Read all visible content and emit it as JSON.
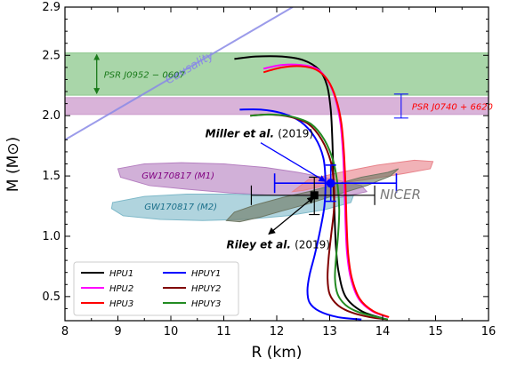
{
  "chart_data": {
    "type": "line",
    "title": "",
    "xlabel": "R (km)",
    "ylabel": "M (M⊙)",
    "xlim": [
      8,
      16
    ],
    "ylim": [
      0.3,
      2.9
    ],
    "x_ticks": [
      8,
      9,
      10,
      11,
      12,
      13,
      14,
      15,
      16
    ],
    "y_ticks": [
      0.5,
      1.0,
      1.5,
      2.0,
      2.5,
      2.9
    ],
    "x_tick_labels": [
      "8",
      "9",
      "10",
      "11",
      "12",
      "13",
      "14",
      "15",
      "16"
    ],
    "y_tick_labels": [
      "0.5",
      "1.0",
      "1.5",
      "2.0",
      "2.5",
      "2.9"
    ],
    "legend_position": "bottom-left",
    "series": [
      {
        "name": "HPU1",
        "color": "#000000",
        "x": [
          11.2,
          11.6,
          12.1,
          12.5,
          12.8,
          12.95,
          13.02,
          13.05,
          13.07,
          13.09,
          13.12,
          13.17,
          13.3,
          13.6,
          14.0
        ],
        "y": [
          2.47,
          2.49,
          2.49,
          2.46,
          2.38,
          2.25,
          2.05,
          1.8,
          1.5,
          1.2,
          0.9,
          0.7,
          0.5,
          0.38,
          0.32
        ]
      },
      {
        "name": "HPU2",
        "color": "#ff00ff",
        "x": [
          11.75,
          12.1,
          12.45,
          12.75,
          12.95,
          13.1,
          13.2,
          13.25,
          13.28,
          13.3,
          13.33,
          13.4,
          13.55,
          13.8,
          14.1
        ],
        "y": [
          2.39,
          2.42,
          2.42,
          2.39,
          2.3,
          2.15,
          1.95,
          1.7,
          1.4,
          1.1,
          0.85,
          0.65,
          0.48,
          0.38,
          0.33
        ]
      },
      {
        "name": "HPU3",
        "color": "#ff0000",
        "x": [
          11.75,
          12.1,
          12.45,
          12.75,
          12.97,
          13.12,
          13.22,
          13.27,
          13.3,
          13.32,
          13.35,
          13.42,
          13.57,
          13.82,
          14.12
        ],
        "y": [
          2.36,
          2.4,
          2.41,
          2.38,
          2.29,
          2.14,
          1.94,
          1.69,
          1.4,
          1.1,
          0.85,
          0.65,
          0.48,
          0.38,
          0.33
        ]
      },
      {
        "name": "HPUY1",
        "color": "#0000ff",
        "x": [
          11.3,
          11.7,
          12.1,
          12.45,
          12.72,
          12.88,
          12.92,
          12.9,
          12.82,
          12.72,
          12.62,
          12.58,
          12.62,
          12.8,
          13.15,
          13.6
        ],
        "y": [
          2.05,
          2.05,
          2.02,
          1.95,
          1.82,
          1.65,
          1.45,
          1.25,
          1.05,
          0.85,
          0.68,
          0.55,
          0.45,
          0.38,
          0.33,
          0.31
        ]
      },
      {
        "name": "HPUY2",
        "color": "#800000",
        "x": [
          11.5,
          11.85,
          12.25,
          12.6,
          12.85,
          13.02,
          13.08,
          13.08,
          13.03,
          12.98,
          12.96,
          13.0,
          13.15,
          13.4,
          13.75,
          14.1
        ],
        "y": [
          2.0,
          2.01,
          1.99,
          1.93,
          1.8,
          1.62,
          1.42,
          1.22,
          1.02,
          0.82,
          0.65,
          0.52,
          0.43,
          0.37,
          0.33,
          0.31
        ]
      },
      {
        "name": "HPUY3",
        "color": "#228b22",
        "x": [
          11.5,
          11.9,
          12.3,
          12.65,
          12.9,
          13.07,
          13.15,
          13.18,
          13.16,
          13.12,
          13.1,
          13.15,
          13.3,
          13.55,
          13.9,
          14.1
        ],
        "y": [
          2.0,
          2.01,
          1.99,
          1.93,
          1.8,
          1.62,
          1.42,
          1.22,
          1.02,
          0.82,
          0.65,
          0.52,
          0.43,
          0.37,
          0.33,
          0.31
        ]
      }
    ],
    "causality": {
      "label": "Causality",
      "x": [
        8.0,
        12.3
      ],
      "y": [
        1.8,
        2.9
      ],
      "color": "#8a8ae6"
    },
    "bands": [
      {
        "label": "PSR J0952 − 0607",
        "ymin": 2.17,
        "ymax": 2.52,
        "color": "#8cc88c",
        "label_color": "#1a7a1a",
        "arrow_x": 8.6
      },
      {
        "label": "PSR J0740 + 6620",
        "ymin": 2.01,
        "ymax": 2.15,
        "color": "#cc9acc",
        "label_color": "#ff0000",
        "arrow_x": 14.35
      }
    ],
    "regions": [
      {
        "label": "GW170817 (M1)",
        "color": "#b57fc0",
        "label_color": "#800080",
        "x": [
          9.0,
          9.5,
          10.2,
          11.0,
          11.8,
          12.4,
          13.1,
          13.6,
          13.7,
          13.3,
          12.6,
          11.9,
          11.1,
          10.3,
          9.6,
          9.05
        ],
        "y": [
          1.56,
          1.6,
          1.61,
          1.6,
          1.57,
          1.53,
          1.47,
          1.42,
          1.37,
          1.33,
          1.33,
          1.34,
          1.36,
          1.39,
          1.42,
          1.49
        ]
      },
      {
        "label": "GW170817 (M2)",
        "color": "#7fb9c9",
        "label_color": "#1a6f8a",
        "x": [
          8.9,
          9.5,
          10.3,
          11.1,
          11.9,
          12.5,
          13.2,
          13.45,
          13.4,
          12.9,
          12.2,
          11.4,
          10.6,
          9.8,
          9.1,
          8.88
        ],
        "y": [
          1.28,
          1.33,
          1.35,
          1.35,
          1.34,
          1.33,
          1.32,
          1.34,
          1.28,
          1.22,
          1.17,
          1.14,
          1.13,
          1.14,
          1.17,
          1.23
        ]
      },
      {
        "label": "",
        "color": "#e8838a",
        "label_color": "#000000",
        "x": [
          12.6,
          13.2,
          13.9,
          14.6,
          14.95,
          14.9,
          14.4,
          13.7,
          13.0,
          12.5,
          12.3
        ],
        "y": [
          1.47,
          1.53,
          1.59,
          1.63,
          1.62,
          1.56,
          1.52,
          1.47,
          1.43,
          1.38,
          1.37
        ]
      },
      {
        "label": "",
        "color": "#6e7763",
        "x": [
          11.2,
          11.6,
          12.1,
          12.6,
          13.1,
          13.6,
          14.1,
          14.3,
          14.15,
          13.7,
          13.1,
          12.6,
          12.1,
          11.7,
          11.3,
          11.05
        ],
        "y": [
          1.2,
          1.26,
          1.32,
          1.37,
          1.43,
          1.49,
          1.53,
          1.56,
          1.5,
          1.42,
          1.34,
          1.27,
          1.21,
          1.16,
          1.12,
          1.13
        ]
      }
    ],
    "measurements": [
      {
        "label": "NICER",
        "color": "#0000ff",
        "x": 13.02,
        "y": 1.44,
        "xerr": [
          11.96,
          14.26
        ],
        "yerr": [
          1.29,
          1.59
        ],
        "marker": "circle"
      },
      {
        "label": "",
        "color": "#000000",
        "x": 12.71,
        "y": 1.34,
        "xerr": [
          11.52,
          13.85
        ],
        "yerr": [
          1.18,
          1.49
        ],
        "marker": "square"
      }
    ],
    "annotations": [
      {
        "text_main": "Miller et al.",
        "text_year": "(2019)",
        "color": "#0000ff",
        "text_x": 10.65,
        "text_y": 1.82,
        "point_x": 12.95,
        "point_y": 1.44
      },
      {
        "text_main": "Riley et al.",
        "text_year": "(2019)",
        "color": "#000000",
        "text_x": 11.05,
        "text_y": 0.9,
        "point_x": 12.7,
        "point_y": 1.37
      }
    ],
    "nicer_label": {
      "text": "NICER",
      "color": "#7a7a7a",
      "x": 13.95,
      "y": 1.31
    }
  }
}
